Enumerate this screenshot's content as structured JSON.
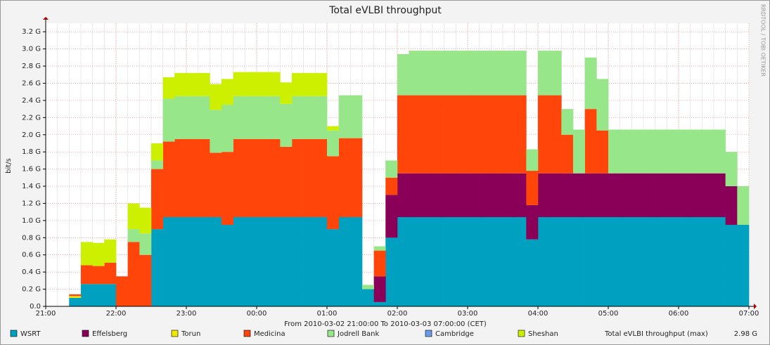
{
  "chart_data": {
    "type": "stacked-area",
    "title": "Total eVLBI throughput",
    "y_label": "bit/s",
    "x_label": "From 2010-03-02 21:00:00 To 2010-03-03 07:00:00 (CET)",
    "side_note": "RRDTOOL / TOBI OETIKER",
    "x": [
      "21:00",
      "21:10",
      "21:20",
      "21:30",
      "21:40",
      "21:50",
      "22:00",
      "22:10",
      "22:20",
      "22:30",
      "22:40",
      "22:50",
      "23:00",
      "23:10",
      "23:20",
      "23:30",
      "23:40",
      "23:50",
      "00:00",
      "00:10",
      "00:20",
      "00:30",
      "00:40",
      "00:50",
      "01:00",
      "01:10",
      "01:20",
      "01:30",
      "01:40",
      "01:50",
      "02:00",
      "02:10",
      "02:20",
      "02:30",
      "02:40",
      "02:50",
      "03:00",
      "03:10",
      "03:20",
      "03:30",
      "03:40",
      "03:50",
      "04:00",
      "04:10",
      "04:20",
      "04:30",
      "04:40",
      "04:50",
      "05:00",
      "05:10",
      "05:20",
      "05:30",
      "05:40",
      "05:50",
      "06:00",
      "06:10",
      "06:20",
      "06:30",
      "06:40",
      "06:50"
    ],
    "xlim": [
      "21:00",
      "07:00"
    ],
    "xticks": [
      "21:00",
      "22:00",
      "23:00",
      "00:00",
      "01:00",
      "02:00",
      "03:00",
      "04:00",
      "05:00",
      "06:00",
      "07:00"
    ],
    "ylim": [
      0,
      3.3
    ],
    "yticks": [
      {
        "value": 0,
        "label": "0.0"
      },
      {
        "value": 0.2,
        "label": "0.2 G"
      },
      {
        "value": 0.4,
        "label": "0.4 G"
      },
      {
        "value": 0.6,
        "label": "0.6 G"
      },
      {
        "value": 0.8,
        "label": "0.8 G"
      },
      {
        "value": 1,
        "label": "1.0 G"
      },
      {
        "value": 1.2,
        "label": "1.2 G"
      },
      {
        "value": 1.4,
        "label": "1.4 G"
      },
      {
        "value": 1.6,
        "label": "1.6 G"
      },
      {
        "value": 1.8,
        "label": "1.8 G"
      },
      {
        "value": 2,
        "label": "2.0 G"
      },
      {
        "value": 2.2,
        "label": "2.2 G"
      },
      {
        "value": 2.4,
        "label": "2.4 G"
      },
      {
        "value": 2.6,
        "label": "2.6 G"
      },
      {
        "value": 2.8,
        "label": "2.8 G"
      },
      {
        "value": 3,
        "label": "3.0 G"
      },
      {
        "value": 3.2,
        "label": "3.2 G"
      }
    ],
    "grid": true,
    "series": [
      {
        "name": "WSRT",
        "color": "#00a0c1",
        "values": [
          0,
          0,
          0.1,
          0.26,
          0.26,
          0.26,
          0,
          0,
          0,
          0.9,
          1.04,
          1.04,
          1.04,
          1.04,
          1.04,
          0.95,
          1.04,
          1.04,
          1.04,
          1.04,
          1.04,
          1.04,
          1.04,
          1.04,
          0.9,
          1.04,
          1.04,
          0.2,
          0.05,
          0.8,
          1.04,
          1.04,
          1.04,
          1.04,
          1.04,
          1.04,
          1.04,
          1.04,
          1.04,
          1.04,
          1.04,
          0.78,
          1.04,
          1.04,
          1.04,
          1.04,
          1.04,
          1.04,
          1.04,
          1.04,
          1.04,
          1.04,
          1.04,
          1.04,
          1.04,
          1.04,
          1.04,
          1.04,
          0.95,
          0.95
        ]
      },
      {
        "name": "Effelsberg",
        "color": "#8a0058",
        "values": [
          0,
          0,
          0,
          0,
          0,
          0,
          0,
          0,
          0,
          0,
          0,
          0,
          0,
          0,
          0,
          0,
          0,
          0,
          0,
          0,
          0,
          0,
          0,
          0,
          0,
          0,
          0,
          0,
          0.3,
          0.5,
          0.51,
          0.51,
          0.51,
          0.51,
          0.51,
          0.51,
          0.51,
          0.51,
          0.51,
          0.51,
          0.51,
          0.4,
          0.51,
          0.51,
          0.51,
          0.51,
          0.51,
          0.51,
          0.51,
          0.51,
          0.51,
          0.51,
          0.51,
          0.51,
          0.51,
          0.51,
          0.51,
          0.51,
          0.45,
          0
        ]
      },
      {
        "name": "Torun",
        "color": "#f0e800",
        "values": [
          0,
          0,
          0.02,
          0,
          0,
          0,
          0,
          0,
          0,
          0,
          0,
          0,
          0,
          0,
          0,
          0,
          0,
          0,
          0,
          0,
          0,
          0,
          0,
          0,
          0,
          0,
          0,
          0,
          0,
          0,
          0,
          0,
          0,
          0,
          0,
          0,
          0,
          0,
          0,
          0,
          0,
          0,
          0,
          0,
          0,
          0,
          0,
          0,
          0,
          0,
          0,
          0,
          0,
          0,
          0,
          0,
          0,
          0,
          0,
          0
        ]
      },
      {
        "name": "Medicina",
        "color": "#ff450a",
        "values": [
          0,
          0,
          0.02,
          0.22,
          0.21,
          0.25,
          0.35,
          0.75,
          0.6,
          0.7,
          0.88,
          0.91,
          0.91,
          0.91,
          0.75,
          0.85,
          0.91,
          0.91,
          0.91,
          0.91,
          0.82,
          0.91,
          0.91,
          0.91,
          0.85,
          0.92,
          0.92,
          0,
          0.3,
          0.2,
          0.91,
          0.91,
          0.91,
          0.91,
          0.91,
          0.91,
          0.91,
          0.91,
          0.91,
          0.91,
          0.91,
          0.4,
          0.91,
          0.91,
          0.45,
          0,
          0.75,
          0.5,
          0,
          0,
          0,
          0,
          0,
          0,
          0,
          0,
          0,
          0,
          0,
          0
        ]
      },
      {
        "name": "Jodrell Bank",
        "color": "#98e68a",
        "values": [
          0,
          0,
          0,
          0,
          0,
          0,
          0,
          0.15,
          0.25,
          0.1,
          0.5,
          0.5,
          0.5,
          0.5,
          0.5,
          0.55,
          0.5,
          0.5,
          0.5,
          0.5,
          0.5,
          0.5,
          0.5,
          0.5,
          0.3,
          0.5,
          0.5,
          0.05,
          0.05,
          0.2,
          0.48,
          0.52,
          0.52,
          0.52,
          0.52,
          0.52,
          0.52,
          0.52,
          0.52,
          0.52,
          0.52,
          0.25,
          0.52,
          0.52,
          0.3,
          0.51,
          0.6,
          0.6,
          0.51,
          0.51,
          0.51,
          0.51,
          0.51,
          0.51,
          0.51,
          0.51,
          0.51,
          0.51,
          0.4,
          0.45
        ]
      },
      {
        "name": "Cambridge",
        "color": "#6a9be6",
        "values": [
          0,
          0,
          0,
          0,
          0,
          0,
          0,
          0,
          0,
          0,
          0,
          0,
          0,
          0,
          0,
          0,
          0,
          0,
          0,
          0,
          0,
          0,
          0,
          0,
          0,
          0,
          0,
          0,
          0,
          0,
          0,
          0,
          0,
          0,
          0,
          0,
          0,
          0,
          0,
          0,
          0,
          0,
          0,
          0,
          0,
          0,
          0,
          0,
          0,
          0,
          0,
          0,
          0,
          0,
          0,
          0,
          0,
          0,
          0,
          0
        ]
      },
      {
        "name": "Sheshan",
        "color": "#ccf000",
        "values": [
          0,
          0,
          0,
          0.27,
          0.27,
          0.27,
          0,
          0.3,
          0.3,
          0.2,
          0.25,
          0.27,
          0.27,
          0.27,
          0.3,
          0.3,
          0.28,
          0.28,
          0.28,
          0.28,
          0.25,
          0.27,
          0.27,
          0.27,
          0.05,
          0,
          0,
          0,
          0,
          0,
          0,
          0,
          0,
          0,
          0,
          0,
          0,
          0,
          0,
          0,
          0,
          0,
          0,
          0,
          0,
          0,
          0,
          0,
          0,
          0,
          0,
          0,
          0,
          0,
          0,
          0,
          0,
          0,
          0,
          0
        ]
      }
    ],
    "total_label": "Total eVLBI throughput (max)",
    "total_max": {
      "value": 2.98,
      "label": "2.98 G"
    }
  }
}
